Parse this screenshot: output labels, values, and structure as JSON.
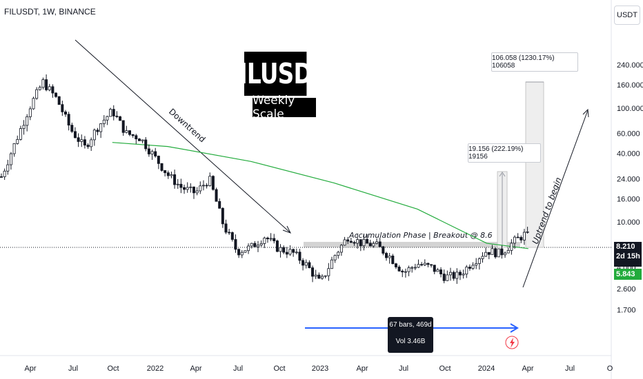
{
  "header": {
    "symbol_title": "FILUSDT, 1W, BINANCE",
    "currency": "USDT"
  },
  "banner": {
    "title": "FILUSDT",
    "subtitle": "Weekly Scale"
  },
  "annotations": {
    "downtrend": "Downtrend",
    "uptrend": "Uptrend to begin",
    "accumulation": "Accumulation Phase | Breakout @ 8.6",
    "measure_small": "19.156 (222.19%) 19156",
    "measure_large": "106.058 (1230.17%) 106058",
    "range_bars": "67 bars, 469d",
    "range_vol": "Vol 3.46B"
  },
  "price_labels": {
    "last_price": "8.210",
    "countdown": "2d 15h",
    "ma_value": "5.843"
  },
  "colors": {
    "up": "#089981",
    "down": "#f23645",
    "candle": "#131722",
    "ma_line": "#22ab3c",
    "range_arrow": "#2962ff",
    "resistance_zone": "#c8c8c8"
  },
  "icons": [
    "lightning-icon"
  ],
  "chart_data": {
    "type": "candlestick",
    "title": "FILUSDT, 1W, BINANCE",
    "scale": "log",
    "ylim": [
      1.5,
      300
    ],
    "y_ticks": [
      "240.000",
      "160.000",
      "100.000",
      "60.000",
      "40.000",
      "24.000",
      "16.000",
      "10.000",
      "4.000",
      "2.600",
      "1.700"
    ],
    "x_ticks": [
      "Apr",
      "Jul",
      "Oct",
      "2022",
      "Apr",
      "Jul",
      "Oct",
      "2023",
      "Apr",
      "Jul",
      "Oct",
      "2024",
      "Apr",
      "Jul",
      "O"
    ],
    "grid": false,
    "series_close_approx": [
      {
        "date": "2021-01",
        "close": 25
      },
      {
        "date": "2021-03",
        "close": 100
      },
      {
        "date": "2021-04",
        "close": 170
      },
      {
        "date": "2021-05",
        "close": 120
      },
      {
        "date": "2021-06",
        "close": 65
      },
      {
        "date": "2021-07",
        "close": 45
      },
      {
        "date": "2021-08",
        "close": 70
      },
      {
        "date": "2021-09",
        "close": 95
      },
      {
        "date": "2021-10",
        "close": 60
      },
      {
        "date": "2021-11",
        "close": 55
      },
      {
        "date": "2021-12",
        "close": 38
      },
      {
        "date": "2022-01",
        "close": 26
      },
      {
        "date": "2022-02",
        "close": 20
      },
      {
        "date": "2022-03",
        "close": 18
      },
      {
        "date": "2022-04",
        "close": 24
      },
      {
        "date": "2022-05",
        "close": 9.5
      },
      {
        "date": "2022-06",
        "close": 5.5
      },
      {
        "date": "2022-07",
        "close": 6.0
      },
      {
        "date": "2022-08",
        "close": 7.5
      },
      {
        "date": "2022-09",
        "close": 5.8
      },
      {
        "date": "2022-10",
        "close": 5.4
      },
      {
        "date": "2022-11",
        "close": 4.2
      },
      {
        "date": "2022-12",
        "close": 2.9
      },
      {
        "date": "2023-01",
        "close": 5.0
      },
      {
        "date": "2023-02",
        "close": 7.5
      },
      {
        "date": "2023-03",
        "close": 6.5
      },
      {
        "date": "2023-04",
        "close": 6.3
      },
      {
        "date": "2023-05",
        "close": 5.0
      },
      {
        "date": "2023-06",
        "close": 3.6
      },
      {
        "date": "2023-07",
        "close": 4.3
      },
      {
        "date": "2023-08",
        "close": 4.0
      },
      {
        "date": "2023-09",
        "close": 3.3
      },
      {
        "date": "2023-10",
        "close": 3.4
      },
      {
        "date": "2023-11",
        "close": 4.5
      },
      {
        "date": "2023-12",
        "close": 5.6
      },
      {
        "date": "2024-01",
        "close": 5.3
      },
      {
        "date": "2024-02",
        "close": 6.8
      },
      {
        "date": "2024-03",
        "close": 8.21
      }
    ],
    "moving_average_approx": [
      {
        "date": "2021-09",
        "value": 50
      },
      {
        "date": "2022-01",
        "value": 46
      },
      {
        "date": "2022-07",
        "value": 34
      },
      {
        "date": "2023-01",
        "value": 22
      },
      {
        "date": "2023-07",
        "value": 13
      },
      {
        "date": "2023-12",
        "value": 6.5
      },
      {
        "date": "2024-03",
        "value": 5.843
      }
    ],
    "resistance_zone": [
      8.6,
      9.2
    ],
    "measured_moves": [
      {
        "value": 19.156,
        "percent": 222.19
      },
      {
        "value": 106.058,
        "percent": 1230.17
      }
    ]
  }
}
